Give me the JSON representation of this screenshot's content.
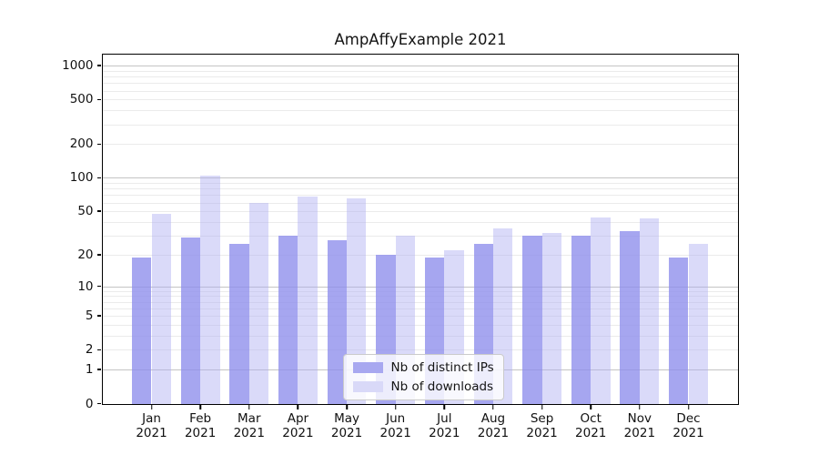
{
  "title": "AmpAffyExample 2021",
  "chart_data": {
    "type": "bar",
    "title": "AmpAffyExample 2021",
    "categories": [
      "Jan",
      "Feb",
      "Mar",
      "Apr",
      "May",
      "Jun",
      "Jul",
      "Aug",
      "Sep",
      "Oct",
      "Nov",
      "Dec"
    ],
    "category_year": "2021",
    "series": [
      {
        "name": "Nb of distinct IPs",
        "color": "#a8a8f0",
        "fill": "rgba(141,141,236,0.78)",
        "values": [
          19,
          29,
          25,
          30,
          27,
          20,
          19,
          25,
          30,
          30,
          33,
          19
        ]
      },
      {
        "name": "Nb of downloads",
        "color": "#d9d9f8",
        "fill": "rgba(173,173,242,0.45)",
        "values": [
          47,
          104,
          59,
          68,
          65,
          30,
          22,
          35,
          32,
          44,
          43,
          25
        ]
      }
    ],
    "yscale": "log1p",
    "yticks": [
      0,
      1,
      2,
      5,
      10,
      20,
      50,
      100,
      200,
      500,
      1000
    ],
    "ylim": [
      0,
      1275
    ],
    "xlabel": "",
    "ylabel": "",
    "grid": true,
    "legend_position": "lower center",
    "colors": {
      "major_grid": "#c4c4c4",
      "minor_grid": "#ebebeb",
      "axis": "#000000",
      "text": "#141414"
    }
  }
}
